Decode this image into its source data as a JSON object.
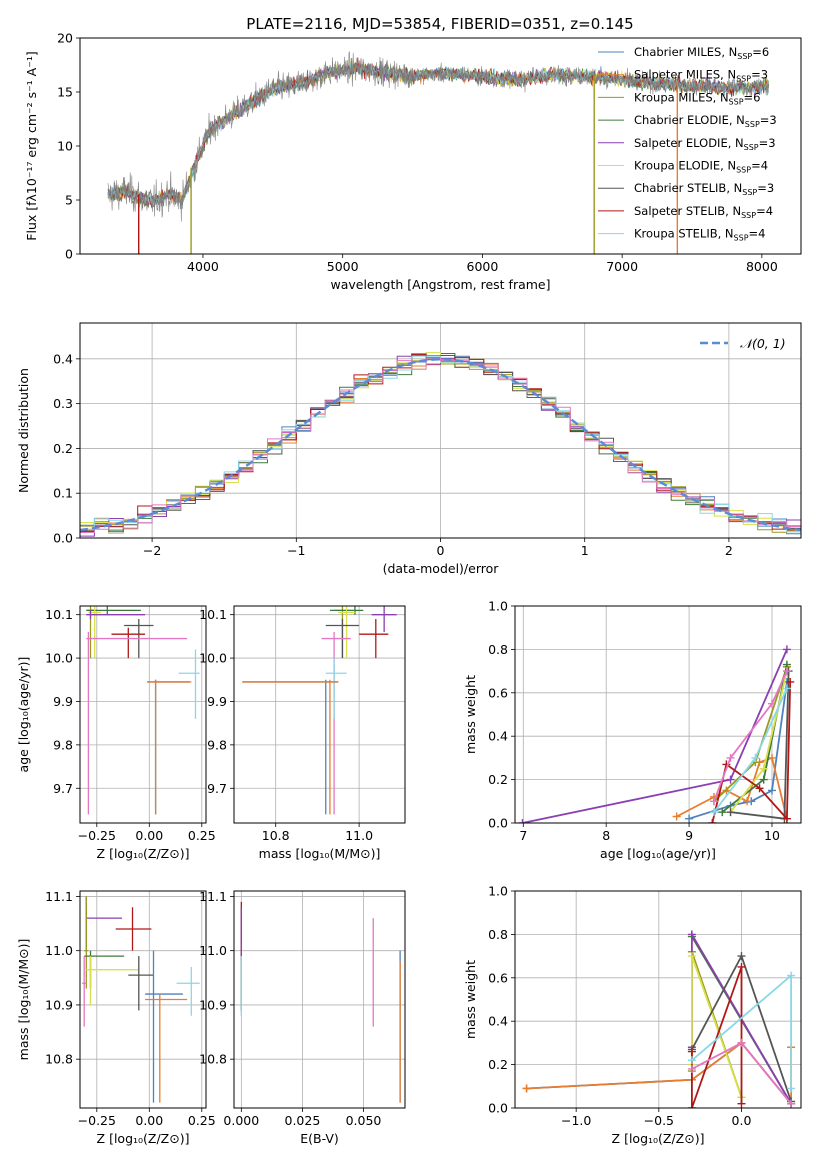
{
  "figure_title": "PLATE=2116, MJD=53854, FIBERID=0351, z=0.145",
  "colors": {
    "Chabrier MILES": "#4f81bd",
    "Salpeter MILES": "#e87d2e",
    "Kroupa MILES": "#9a9a1f",
    "Chabrier ELODIE": "#3d7a3d",
    "Salpeter ELODIE": "#8b3fb0",
    "Kroupa ELODIE": "#d8e04a",
    "Chabrier STELIB": "#555555",
    "Salpeter STELIB": "#b01818",
    "Kroupa STELIB": "#88d8e6",
    "pink": "#e377c2",
    "spectrum": "#808080",
    "gaussian": "#5b8bd6"
  },
  "chart_data": [
    {
      "id": "spectrum",
      "type": "line",
      "title": "PLATE=2116, MJD=53854, FIBERID=0351, z=0.145",
      "xlabel": "wavelength [Angstrom, rest frame]",
      "ylabel": "Flux [fλ10⁻¹⁷ erg cm⁻² s⁻¹ A⁻¹]",
      "xlim": [
        3120,
        8280
      ],
      "ylim": [
        0,
        20
      ],
      "xticks": [
        4000,
        5000,
        6000,
        7000,
        8000
      ],
      "yticks": [
        0,
        5,
        10,
        15,
        20
      ],
      "grid": false,
      "legend_position": "top-right",
      "legend": [
        {
          "name": "Chabrier MILES",
          "nssp": "6",
          "color": "#4f81bd"
        },
        {
          "name": "Salpeter MILES",
          "nssp": "3",
          "color": "#e87d2e"
        },
        {
          "name": "Kroupa MILES",
          "nssp": "6",
          "color": "#9a9a1f"
        },
        {
          "name": "Chabrier ELODIE",
          "nssp": "3",
          "color": "#3d7a3d"
        },
        {
          "name": "Salpeter ELODIE",
          "nssp": "3",
          "color": "#8b3fb0"
        },
        {
          "name": "Kroupa ELODIE",
          "nssp": "4",
          "color": "#d8e04a"
        },
        {
          "name": "Chabrier STELIB",
          "nssp": "3",
          "color": "#555555"
        },
        {
          "name": "Salpeter STELIB",
          "nssp": "4",
          "color": "#b01818"
        },
        {
          "name": "Kroupa STELIB",
          "nssp": "4",
          "color": "#88d8e6"
        }
      ],
      "continuum": [
        [
          3320,
          5.5
        ],
        [
          3450,
          5.8
        ],
        [
          3550,
          5.2
        ],
        [
          3650,
          4.8
        ],
        [
          3750,
          5.6
        ],
        [
          3850,
          5.0
        ],
        [
          3950,
          8.5
        ],
        [
          4050,
          11.5
        ],
        [
          4200,
          12.8
        ],
        [
          4350,
          14.0
        ],
        [
          4500,
          15.3
        ],
        [
          4700,
          15.8
        ],
        [
          4900,
          16.8
        ],
        [
          5100,
          17.2
        ],
        [
          5300,
          16.8
        ],
        [
          5500,
          16.5
        ],
        [
          5700,
          16.7
        ],
        [
          5900,
          16.6
        ],
        [
          6100,
          16.3
        ],
        [
          6300,
          16.2
        ],
        [
          6500,
          16.6
        ],
        [
          6700,
          16.5
        ],
        [
          6900,
          16.3
        ],
        [
          7100,
          16.0
        ],
        [
          7300,
          15.7
        ],
        [
          7500,
          15.6
        ],
        [
          7700,
          15.4
        ],
        [
          7900,
          15.4
        ],
        [
          8050,
          15.6
        ]
      ],
      "vertical_drops": [
        {
          "x": 3540,
          "ymax": 5.5,
          "color": "#e87d2e"
        },
        {
          "x": 3540,
          "ymax": 5.5,
          "color": "#b01818"
        },
        {
          "x": 3915,
          "ymax": 8.0,
          "color": "#9a9a1f"
        },
        {
          "x": 6800,
          "ymax": 16.5,
          "color": "#9a9a1f"
        },
        {
          "x": 7395,
          "ymax": 16.0,
          "color": "#e87d2e"
        }
      ]
    },
    {
      "id": "residuals",
      "type": "line",
      "xlabel": "(data-model)/error",
      "ylabel": "Normed distribution",
      "xlim": [
        -2.5,
        2.5
      ],
      "ylim": [
        0,
        0.48
      ],
      "xticks": [
        -2,
        -1,
        0,
        1,
        2
      ],
      "yticks": [
        0.0,
        0.1,
        0.2,
        0.3,
        0.4
      ],
      "grid": true,
      "legend_position": "top-right",
      "gaussian_label": "𝒩(0, 1)",
      "gaussian_mean": 0,
      "gaussian_sigma": 1,
      "bin_width": 0.1
    },
    {
      "id": "age_vs_Z",
      "type": "scatter",
      "xlabel": "Z [log₁₀(Z/Z⊙)]",
      "ylabel": "age  [log₁₀(age/yr)]",
      "xlim": [
        -0.33,
        0.27
      ],
      "ylim": [
        9.62,
        10.12
      ],
      "xticks": [
        -0.25,
        0.0,
        0.25
      ],
      "yticks": [
        9.7,
        9.8,
        9.9,
        10.0,
        10.1
      ],
      "grid": true,
      "points": [
        {
          "x": -0.28,
          "y": 10.11,
          "xlo": -0.3,
          "xhi": -0.26,
          "ylo": 10.0,
          "yhi": 10.12,
          "color": "#9a9a1f"
        },
        {
          "x": -0.2,
          "y": 10.11,
          "xlo": -0.3,
          "xhi": -0.04,
          "ylo": 10.1,
          "yhi": 10.12,
          "color": "#3d7a3d"
        },
        {
          "x": -0.26,
          "y": 10.105,
          "xlo": -0.29,
          "xhi": -0.23,
          "ylo": 10.0,
          "yhi": 10.12,
          "color": "#d8e04a"
        },
        {
          "x": -0.28,
          "y": 10.1,
          "xlo": -0.3,
          "xhi": -0.02,
          "ylo": 10.09,
          "yhi": 10.11,
          "color": "#8b3fb0"
        },
        {
          "x": -0.05,
          "y": 10.075,
          "xlo": -0.12,
          "xhi": 0.02,
          "ylo": 10.0,
          "yhi": 10.09,
          "color": "#555555"
        },
        {
          "x": -0.1,
          "y": 10.055,
          "xlo": -0.18,
          "xhi": -0.02,
          "ylo": 10.0,
          "yhi": 10.07,
          "color": "#b01818"
        },
        {
          "x": -0.29,
          "y": 10.045,
          "xlo": -0.3,
          "xhi": 0.18,
          "ylo": 9.64,
          "yhi": 10.06,
          "color": "#e377c2"
        },
        {
          "x": 0.22,
          "y": 9.965,
          "xlo": 0.14,
          "xhi": 0.24,
          "ylo": 9.86,
          "yhi": 10.02,
          "color": "#88d8e6"
        },
        {
          "x": 0.03,
          "y": 9.945,
          "xlo": -0.01,
          "xhi": 0.19,
          "ylo": 9.64,
          "yhi": 9.95,
          "color": "#4f81bd"
        },
        {
          "x": 0.03,
          "y": 9.945,
          "xlo": -0.01,
          "xhi": 0.2,
          "ylo": 9.64,
          "yhi": 9.95,
          "color": "#e87d2e"
        }
      ]
    },
    {
      "id": "age_vs_mass",
      "type": "scatter",
      "xlabel": "mass [log₁₀(M/M⊙)]",
      "ylabel": "",
      "xlim": [
        10.7,
        11.11
      ],
      "ylim": [
        9.62,
        10.12
      ],
      "xticks": [
        10.8,
        11.0
      ],
      "yticks": [
        9.7,
        9.8,
        9.9,
        10.0,
        10.1
      ],
      "grid": true,
      "points": [
        {
          "x": 10.96,
          "y": 10.11,
          "xlo": 10.94,
          "xhi": 10.98,
          "ylo": 10.0,
          "yhi": 10.12,
          "color": "#9a9a1f"
        },
        {
          "x": 10.99,
          "y": 10.11,
          "xlo": 10.93,
          "xhi": 11.01,
          "ylo": 10.1,
          "yhi": 10.12,
          "color": "#3d7a3d"
        },
        {
          "x": 10.97,
          "y": 10.105,
          "xlo": 10.95,
          "xhi": 10.99,
          "ylo": 10.0,
          "yhi": 10.12,
          "color": "#d8e04a"
        },
        {
          "x": 11.06,
          "y": 10.1,
          "xlo": 11.03,
          "xhi": 11.09,
          "ylo": 10.06,
          "yhi": 10.12,
          "color": "#8b3fb0"
        },
        {
          "x": 10.96,
          "y": 10.075,
          "xlo": 10.92,
          "xhi": 11.0,
          "ylo": 10.0,
          "yhi": 10.09,
          "color": "#555555"
        },
        {
          "x": 11.04,
          "y": 10.055,
          "xlo": 11.0,
          "xhi": 11.07,
          "ylo": 10.0,
          "yhi": 10.09,
          "color": "#b01818"
        },
        {
          "x": 10.94,
          "y": 10.045,
          "xlo": 10.91,
          "xhi": 10.98,
          "ylo": 9.64,
          "yhi": 10.06,
          "color": "#e377c2"
        },
        {
          "x": 10.94,
          "y": 9.965,
          "xlo": 10.92,
          "xhi": 10.97,
          "ylo": 9.86,
          "yhi": 10.0,
          "color": "#88d8e6"
        },
        {
          "x": 10.92,
          "y": 9.945,
          "xlo": 10.72,
          "xhi": 10.95,
          "ylo": 9.64,
          "yhi": 9.95,
          "color": "#4f81bd"
        },
        {
          "x": 10.93,
          "y": 9.945,
          "xlo": 10.72,
          "xhi": 10.95,
          "ylo": 9.64,
          "yhi": 9.95,
          "color": "#e87d2e"
        }
      ]
    },
    {
      "id": "weight_vs_age",
      "type": "line",
      "xlabel": "age  [log₁₀(age/yr)]",
      "ylabel": "mass weight",
      "xlim": [
        6.9,
        10.35
      ],
      "ylim": [
        0,
        1.0
      ],
      "xticks": [
        7,
        8,
        9,
        10
      ],
      "yticks": [
        0.0,
        0.2,
        0.4,
        0.6,
        0.8,
        1.0
      ],
      "grid": true,
      "series": [
        {
          "color": "#4f81bd",
          "x": [
            9.0,
            9.5,
            9.75,
            10.0,
            10.18
          ],
          "y": [
            0.02,
            0.08,
            0.1,
            0.15,
            0.65
          ]
        },
        {
          "color": "#e87d2e",
          "x": [
            8.85,
            9.3,
            9.45,
            9.7,
            9.85,
            10.0,
            10.18
          ],
          "y": [
            0.03,
            0.12,
            0.15,
            0.1,
            0.28,
            0.3,
            0.02
          ]
        },
        {
          "color": "#9a9a1f",
          "x": [
            9.3,
            9.8,
            10.18
          ],
          "y": [
            0.1,
            0.28,
            0.72
          ]
        },
        {
          "color": "#3d7a3d",
          "x": [
            9.4,
            9.9,
            10.18
          ],
          "y": [
            0.05,
            0.2,
            0.73
          ]
        },
        {
          "color": "#8b3fb0",
          "x": [
            6.99,
            9.5,
            10.18
          ],
          "y": [
            0.0,
            0.2,
            0.8
          ]
        },
        {
          "color": "#d8e04a",
          "x": [
            9.5,
            9.9,
            10.18
          ],
          "y": [
            0.05,
            0.25,
            0.7
          ]
        },
        {
          "color": "#555555",
          "x": [
            9.5,
            10.15,
            10.2
          ],
          "y": [
            0.05,
            0.02,
            0.7
          ]
        },
        {
          "color": "#b01818",
          "x": [
            9.28,
            9.45,
            9.85,
            10.18,
            10.22
          ],
          "y": [
            0.0,
            0.27,
            0.16,
            0.02,
            0.65
          ]
        },
        {
          "color": "#88d8e6",
          "x": [
            9.3,
            9.8,
            10.18
          ],
          "y": [
            0.05,
            0.3,
            0.62
          ]
        },
        {
          "color": "#e377c2",
          "x": [
            9.3,
            9.5,
            10.0,
            10.18
          ],
          "y": [
            0.1,
            0.3,
            0.55,
            0.7
          ]
        }
      ]
    },
    {
      "id": "mass_vs_Z",
      "type": "scatter",
      "xlabel": "Z [log₁₀(Z/Z⊙)]",
      "ylabel": "mass [log₁₀(M/M⊙)]",
      "xlim": [
        -0.33,
        0.27
      ],
      "ylim": [
        10.71,
        11.11
      ],
      "xticks": [
        -0.25,
        0.0,
        0.25
      ],
      "yticks": [
        10.8,
        10.9,
        11.0,
        11.1
      ],
      "grid": true,
      "points": [
        {
          "x": -0.3,
          "y": 11.06,
          "xlo": -0.3,
          "xhi": -0.13,
          "ylo": 11.0,
          "yhi": 11.1,
          "color": "#8b3fb0"
        },
        {
          "x": -0.3,
          "y": 11.0,
          "xlo": -0.31,
          "xhi": -0.29,
          "ylo": 10.93,
          "yhi": 11.1,
          "color": "#9a9a1f"
        },
        {
          "x": -0.08,
          "y": 11.04,
          "xlo": -0.16,
          "xhi": 0.01,
          "ylo": 11.0,
          "yhi": 11.08,
          "color": "#b01818"
        },
        {
          "x": -0.28,
          "y": 10.99,
          "xlo": -0.31,
          "xhi": -0.12,
          "ylo": 10.93,
          "yhi": 11.0,
          "color": "#3d7a3d"
        },
        {
          "x": -0.28,
          "y": 10.965,
          "xlo": -0.3,
          "xhi": -0.05,
          "ylo": 10.9,
          "yhi": 10.99,
          "color": "#d8e04a"
        },
        {
          "x": -0.31,
          "y": 10.94,
          "xlo": -0.32,
          "xhi": -0.3,
          "ylo": 10.86,
          "yhi": 10.99,
          "color": "#e377c2"
        },
        {
          "x": -0.05,
          "y": 10.955,
          "xlo": -0.1,
          "xhi": 0.02,
          "ylo": 10.89,
          "yhi": 10.99,
          "color": "#555555"
        },
        {
          "x": 0.2,
          "y": 10.94,
          "xlo": 0.13,
          "xhi": 0.24,
          "ylo": 10.88,
          "yhi": 10.97,
          "color": "#88d8e6"
        },
        {
          "x": 0.02,
          "y": 10.92,
          "xlo": -0.02,
          "xhi": 0.16,
          "ylo": 10.72,
          "yhi": 11.0,
          "color": "#4f81bd"
        },
        {
          "x": 0.05,
          "y": 10.91,
          "xlo": -0.02,
          "xhi": 0.18,
          "ylo": 10.72,
          "yhi": 10.92,
          "color": "#e87d2e"
        }
      ]
    },
    {
      "id": "mass_vs_ebv",
      "type": "scatter",
      "xlabel": "E(B-V)",
      "ylabel": "",
      "xlim": [
        -0.003,
        0.067
      ],
      "ylim": [
        10.71,
        11.11
      ],
      "xticks": [
        0.0,
        0.025,
        0.05
      ],
      "xtick_labels": [
        "0.000",
        "0.025",
        "0.050"
      ],
      "yticks": [
        10.8,
        10.9,
        11.0,
        11.1
      ],
      "grid": true,
      "points": [
        {
          "x": 0.0,
          "y": 11.04,
          "ylo": 10.98,
          "yhi": 11.09,
          "color": "#b01818"
        },
        {
          "x": 0.0,
          "y": 11.0,
          "ylo": 10.89,
          "yhi": 11.08,
          "color": "#8b3fb0"
        },
        {
          "x": 0.0,
          "y": 10.95,
          "ylo": 10.89,
          "yhi": 10.99,
          "color": "#3d7a3d"
        },
        {
          "x": 0.0,
          "y": 10.94,
          "ylo": 10.88,
          "yhi": 10.99,
          "color": "#88d8e6"
        },
        {
          "x": 0.054,
          "y": 10.96,
          "ylo": 10.86,
          "yhi": 11.06,
          "color": "#e377c2"
        },
        {
          "x": 0.065,
          "y": 10.9,
          "ylo": 10.72,
          "yhi": 11.0,
          "color": "#4f81bd"
        },
        {
          "x": 0.065,
          "y": 10.86,
          "ylo": 10.72,
          "yhi": 10.98,
          "color": "#e87d2e"
        }
      ]
    },
    {
      "id": "weight_vs_Z",
      "type": "line",
      "xlabel": "Z [log₁₀(Z/Z⊙)]",
      "ylabel": "mass weight",
      "xlim": [
        -1.37,
        0.36
      ],
      "ylim": [
        0,
        1.0
      ],
      "xticks": [
        -1.0,
        -0.5,
        0.0
      ],
      "yticks": [
        0.0,
        0.2,
        0.4,
        0.6,
        0.8,
        1.0
      ],
      "grid": true,
      "series": [
        {
          "color": "#4f81bd",
          "x": [
            -1.3,
            -0.3,
            0.0,
            0.3
          ],
          "y": [
            0.09,
            0.13,
            0.3,
            0.02
          ]
        },
        {
          "color": "#e87d2e",
          "x": [
            -1.3,
            -0.3,
            0.0,
            0.3,
            0.3
          ],
          "y": [
            0.09,
            0.13,
            0.3,
            0.02,
            0.28
          ]
        },
        {
          "color": "#9a9a1f",
          "x": [
            -0.3,
            -0.3,
            0.0
          ],
          "y": [
            0.17,
            0.72,
            0.05
          ]
        },
        {
          "color": "#3d7a3d",
          "x": [
            -0.3,
            0.3
          ],
          "y": [
            0.79,
            0.02
          ]
        },
        {
          "color": "#8b3fb0",
          "x": [
            -0.3,
            -0.3,
            0.3
          ],
          "y": [
            0.28,
            0.8,
            0.02
          ]
        },
        {
          "color": "#d8e04a",
          "x": [
            -0.3,
            -0.3,
            0.0
          ],
          "y": [
            0.2,
            0.7,
            0.05
          ]
        },
        {
          "color": "#555555",
          "x": [
            -0.3,
            0.0,
            0.3
          ],
          "y": [
            0.27,
            0.7,
            0.03
          ]
        },
        {
          "color": "#b01818",
          "x": [
            -0.3,
            -0.3,
            0.0,
            0.0
          ],
          "y": [
            0.26,
            0.0,
            0.65,
            0.02
          ]
        },
        {
          "color": "#88d8e6",
          "x": [
            -0.3,
            0.3,
            0.3
          ],
          "y": [
            0.22,
            0.61,
            0.09
          ]
        },
        {
          "color": "#e377c2",
          "x": [
            -0.3,
            0.0,
            0.3
          ],
          "y": [
            0.18,
            0.3,
            0.02
          ]
        }
      ]
    }
  ]
}
